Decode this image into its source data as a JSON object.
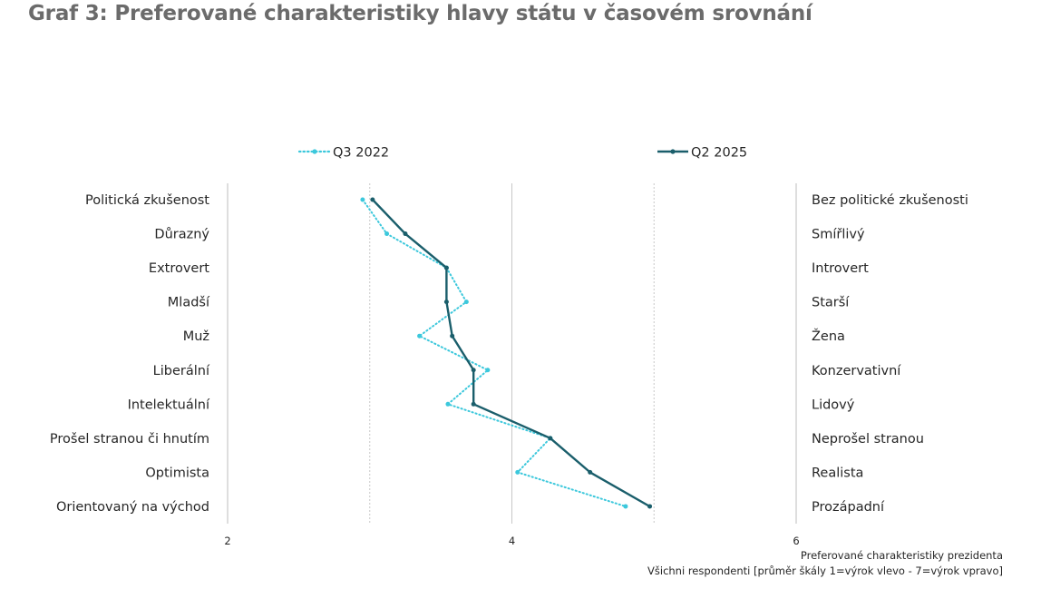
{
  "title": "Graf 3: Preferované charakteristiky hlavy státu v časovém srovnání",
  "note": {
    "line1": "Preferované charakteristiky prezidenta",
    "line2": "Všichni respondenti [průměr škály 1=výrok vlevo - 7=výrok vpravo]"
  },
  "colors": {
    "q3_2022": "#3cc8dc",
    "q2_2025": "#1a5e6b",
    "gridline": "#c8c8c8",
    "title": "#6b6b6b"
  },
  "chart_data": {
    "type": "line",
    "orientation": "horizontal",
    "x_axis": {
      "min": 2,
      "max": 6,
      "ticks": [
        "2",
        "4",
        "6"
      ],
      "gridlines": [
        {
          "value": 3,
          "style": "dashed"
        },
        {
          "value": 4,
          "style": "solid"
        },
        {
          "value": 5,
          "style": "dashed"
        }
      ]
    },
    "categories_left": [
      "Politická zkušenost",
      "Důrazný",
      "Extrovert",
      "Mladší",
      "Muž",
      "Liberální",
      "Intelektuální",
      "Prošel stranou či hnutím",
      "Optimista",
      "Orientovaný na východ"
    ],
    "categories_right": [
      "Bez politické zkušenosti",
      "Smířlivý",
      "Introvert",
      "Starší",
      "Žena",
      "Konzervativní",
      "Lidový",
      "Neprošel stranou",
      "Realista",
      "Prozápadní"
    ],
    "series": [
      {
        "name": "Q3 2022",
        "style": "dotted",
        "values": [
          2.95,
          3.12,
          3.54,
          3.68,
          3.35,
          3.83,
          3.55,
          4.27,
          4.04,
          4.8
        ]
      },
      {
        "name": "Q2 2025",
        "style": "solid",
        "values": [
          3.02,
          3.25,
          3.54,
          3.54,
          3.58,
          3.73,
          3.73,
          4.27,
          4.55,
          4.97
        ]
      }
    ],
    "legend_position": "top"
  }
}
